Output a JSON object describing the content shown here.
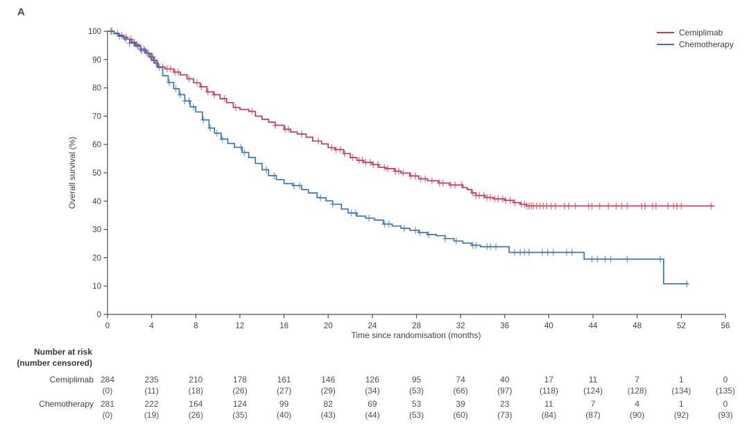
{
  "panel_label": "A",
  "chart_data": {
    "type": "line",
    "subtype": "kaplan-meier-step",
    "title": "",
    "xlabel": "Time since randomisation (months)",
    "ylabel": "Overall survival (%)",
    "xlim": [
      0,
      56
    ],
    "ylim": [
      0,
      100
    ],
    "xticks": [
      0,
      4,
      8,
      12,
      16,
      20,
      24,
      28,
      32,
      36,
      40,
      44,
      48,
      52,
      56
    ],
    "yticks": [
      0,
      10,
      20,
      30,
      40,
      50,
      60,
      70,
      80,
      90,
      100
    ],
    "grid": false,
    "legend_position": "top-right",
    "axis_color": "#4d4d4d",
    "series": [
      {
        "name": "Cemiplimab",
        "color": "#c63a52",
        "points": [
          [
            0,
            100
          ],
          [
            0.6,
            99.3
          ],
          [
            1,
            98.6
          ],
          [
            1.4,
            97.9
          ],
          [
            1.8,
            97.2
          ],
          [
            2.2,
            96.1
          ],
          [
            2.6,
            95.1
          ],
          [
            3,
            93.7
          ],
          [
            3.4,
            92.3
          ],
          [
            3.8,
            90.9
          ],
          [
            4.2,
            88.8
          ],
          [
            4.6,
            87.4
          ],
          [
            5.2,
            86.7
          ],
          [
            6,
            85.6
          ],
          [
            6.6,
            84.6
          ],
          [
            7.2,
            83.2
          ],
          [
            7.8,
            81.8
          ],
          [
            8.4,
            80.4
          ],
          [
            9,
            78.6
          ],
          [
            9.6,
            77.6
          ],
          [
            10.2,
            76.2
          ],
          [
            10.8,
            74.8
          ],
          [
            11.4,
            73.1
          ],
          [
            12,
            72.4
          ],
          [
            12.8,
            71.7
          ],
          [
            13.4,
            70
          ],
          [
            14,
            68.9
          ],
          [
            14.6,
            67.9
          ],
          [
            15.2,
            66.8
          ],
          [
            16,
            65.4
          ],
          [
            16.6,
            64.4
          ],
          [
            17.2,
            63.7
          ],
          [
            18,
            62.6
          ],
          [
            18.6,
            61.2
          ],
          [
            19.4,
            60.2
          ],
          [
            20,
            58.9
          ],
          [
            20.6,
            58.2
          ],
          [
            21.4,
            56.8
          ],
          [
            22,
            55.4
          ],
          [
            22.6,
            54.4
          ],
          [
            23.2,
            53.7
          ],
          [
            24,
            52.9
          ],
          [
            24.6,
            51.9
          ],
          [
            25.2,
            51.5
          ],
          [
            26,
            50.6
          ],
          [
            26.6,
            49.9
          ],
          [
            27.4,
            48.9
          ],
          [
            28.2,
            47.9
          ],
          [
            29,
            47.2
          ],
          [
            30,
            46.4
          ],
          [
            31,
            45.7
          ],
          [
            32.2,
            44.8
          ],
          [
            32.6,
            44.1
          ],
          [
            33,
            42.9
          ],
          [
            33.4,
            42
          ],
          [
            34.2,
            41.3
          ],
          [
            35,
            40.8
          ],
          [
            36,
            40.3
          ],
          [
            36.8,
            39.5
          ],
          [
            37.4,
            38.9
          ],
          [
            38,
            38.3
          ],
          [
            55,
            38.3
          ]
        ],
        "censor_times": [
          0.3,
          0.9,
          1.3,
          1.7,
          2.1,
          2.4,
          2.7,
          3.0,
          3.3,
          3.6,
          3.9,
          4.1,
          4.4,
          5.0,
          5.4,
          5.7,
          6.1,
          6.4,
          7.4,
          8.1,
          8.5,
          9.1,
          9.7,
          10.6,
          11.6,
          13.1,
          15.2,
          16.1,
          16.4,
          17.6,
          19.1,
          20.3,
          20.7,
          21.1,
          21.5,
          22.2,
          22.8,
          23.1,
          23.4,
          23.8,
          24.1,
          24.5,
          25.1,
          25.4,
          26.1,
          26.4,
          26.8,
          27.5,
          27.9,
          28.4,
          28.8,
          29.4,
          30.1,
          30.4,
          31.1,
          31.5,
          32.1,
          33.1,
          33.4,
          33.7,
          34.1,
          34.4,
          34.7,
          35.1,
          35.4,
          35.8,
          36.1,
          36.5,
          36.9,
          37.5,
          37.8,
          38.0,
          38.2,
          38.4,
          38.6,
          38.9,
          39.2,
          39.5,
          39.8,
          40.2,
          40.6,
          41.4,
          41.8,
          42.4,
          43.6,
          43.9,
          44.6,
          45.4,
          46.1,
          46.6,
          47.1,
          48.4,
          48.7,
          49.4,
          49.7,
          50.8,
          51.3,
          51.6,
          52.0,
          54.7
        ]
      },
      {
        "name": "Chemotherapy",
        "color": "#3c74b9",
        "points": [
          [
            0,
            100
          ],
          [
            0.6,
            99.1
          ],
          [
            1,
            98.2
          ],
          [
            1.5,
            97.2
          ],
          [
            2,
            95.8
          ],
          [
            2.5,
            94.7
          ],
          [
            3,
            93.2
          ],
          [
            3.5,
            92.2
          ],
          [
            4,
            89.7
          ],
          [
            4.5,
            87.2
          ],
          [
            5,
            84.3
          ],
          [
            5.5,
            81.9
          ],
          [
            6,
            79.7
          ],
          [
            6.5,
            77.6
          ],
          [
            7,
            75.4
          ],
          [
            7.5,
            73.3
          ],
          [
            8,
            71.5
          ],
          [
            8.6,
            68.7
          ],
          [
            9.2,
            65.8
          ],
          [
            9.7,
            64
          ],
          [
            10.3,
            61.9
          ],
          [
            10.9,
            60.4
          ],
          [
            11.5,
            59
          ],
          [
            12.2,
            57.2
          ],
          [
            12.8,
            55.4
          ],
          [
            13.4,
            53.3
          ],
          [
            14,
            51.1
          ],
          [
            14.6,
            49
          ],
          [
            15.3,
            47.6
          ],
          [
            16,
            46.2
          ],
          [
            16.8,
            45.5
          ],
          [
            17.6,
            44.1
          ],
          [
            18.2,
            42.9
          ],
          [
            19,
            41.2
          ],
          [
            19.8,
            40.1
          ],
          [
            20.4,
            38.9
          ],
          [
            21.2,
            37.2
          ],
          [
            21.8,
            35.8
          ],
          [
            22.6,
            34.7
          ],
          [
            23.4,
            34
          ],
          [
            24.2,
            33.3
          ],
          [
            25,
            31.9
          ],
          [
            25.8,
            31.2
          ],
          [
            26.6,
            30.4
          ],
          [
            27.4,
            29.7
          ],
          [
            28.2,
            28.9
          ],
          [
            29,
            28.2
          ],
          [
            29.8,
            27.8
          ],
          [
            30.6,
            26.8
          ],
          [
            31.4,
            25.9
          ],
          [
            32.2,
            25.2
          ],
          [
            33,
            24.4
          ],
          [
            33.8,
            23.9
          ],
          [
            36.4,
            21.9
          ],
          [
            43.2,
            19.5
          ],
          [
            50.4,
            10.8
          ],
          [
            52.6,
            10.8
          ]
        ],
        "censor_times": [
          0.4,
          1.1,
          1.6,
          2.0,
          2.4,
          2.8,
          3.1,
          3.4,
          3.7,
          4.3,
          4.7,
          5.6,
          6.2,
          6.6,
          7.0,
          7.4,
          7.8,
          8.7,
          9.3,
          9.9,
          10.4,
          12.1,
          12.4,
          14.4,
          15.1,
          16.9,
          17.4,
          19.3,
          20.4,
          22.1,
          22.5,
          23.7,
          25.1,
          25.5,
          26.9,
          27.9,
          28.3,
          29.1,
          30.6,
          31.6,
          33.1,
          33.4,
          34.4,
          34.7,
          35.2,
          36.9,
          37.4,
          37.8,
          38.2,
          39.4,
          39.9,
          40.4,
          41.6,
          42.1,
          43.9,
          44.4,
          45.1,
          45.6,
          47.1,
          50.1,
          52.5
        ]
      }
    ]
  },
  "risk_table": {
    "header_line1": "Number at risk",
    "header_line2": "(number censored)",
    "times": [
      0,
      4,
      8,
      12,
      16,
      20,
      24,
      28,
      32,
      36,
      40,
      44,
      48,
      52,
      56
    ],
    "rows": [
      {
        "label": "Cemiplimab",
        "at_risk": [
          284,
          235,
          210,
          178,
          161,
          146,
          126,
          95,
          74,
          40,
          17,
          11,
          7,
          1,
          0
        ],
        "censored": [
          0,
          11,
          18,
          26,
          27,
          29,
          34,
          53,
          66,
          97,
          118,
          124,
          128,
          134,
          135
        ]
      },
      {
        "label": "Chemotherapy",
        "at_risk": [
          281,
          222,
          164,
          124,
          99,
          82,
          69,
          53,
          39,
          23,
          11,
          7,
          4,
          1,
          0
        ],
        "censored": [
          0,
          19,
          26,
          35,
          40,
          43,
          44,
          53,
          60,
          73,
          84,
          87,
          90,
          92,
          93
        ]
      }
    ]
  }
}
